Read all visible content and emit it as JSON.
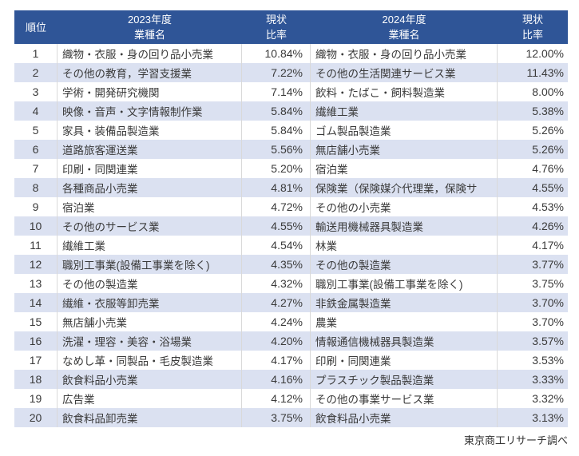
{
  "chart_data": {
    "type": "table",
    "columns": [
      "順位",
      "2023年度 業種名",
      "現状比率",
      "2024年度 業種名",
      "現状比率"
    ],
    "headers": {
      "rank": "順位",
      "year_2023": "2023年度",
      "year_2024": "2024年度",
      "industry_label": "業種名",
      "ratio_line1": "現状",
      "ratio_line2": "比率"
    },
    "rows": [
      {
        "rank": "1",
        "industry_2023": "織物・衣服・身の回り品小売業",
        "ratio_2023": "10.84%",
        "industry_2024": "織物・衣服・身の回り品小売業",
        "ratio_2024": "12.00%"
      },
      {
        "rank": "2",
        "industry_2023": "その他の教育，学習支援業",
        "ratio_2023": "7.22%",
        "industry_2024": "その他の生活関連サービス業",
        "ratio_2024": "11.43%"
      },
      {
        "rank": "3",
        "industry_2023": "学術・開発研究機関",
        "ratio_2023": "7.14%",
        "industry_2024": "飲料・たばこ・飼料製造業",
        "ratio_2024": "8.00%"
      },
      {
        "rank": "4",
        "industry_2023": "映像・音声・文字情報制作業",
        "ratio_2023": "5.84%",
        "industry_2024": "繊維工業",
        "ratio_2024": "5.38%"
      },
      {
        "rank": "5",
        "industry_2023": "家具・装備品製造業",
        "ratio_2023": "5.84%",
        "industry_2024": "ゴム製品製造業",
        "ratio_2024": "5.26%"
      },
      {
        "rank": "6",
        "industry_2023": "道路旅客運送業",
        "ratio_2023": "5.56%",
        "industry_2024": "無店舗小売業",
        "ratio_2024": "5.26%"
      },
      {
        "rank": "7",
        "industry_2023": "印刷・同関連業",
        "ratio_2023": "5.20%",
        "industry_2024": "宿泊業",
        "ratio_2024": "4.76%"
      },
      {
        "rank": "8",
        "industry_2023": "各種商品小売業",
        "ratio_2023": "4.81%",
        "industry_2024": "保険業（保険媒介代理業，保険サ",
        "ratio_2024": "4.55%"
      },
      {
        "rank": "9",
        "industry_2023": "宿泊業",
        "ratio_2023": "4.72%",
        "industry_2024": "その他の小売業",
        "ratio_2024": "4.53%"
      },
      {
        "rank": "10",
        "industry_2023": "その他のサービス業",
        "ratio_2023": "4.55%",
        "industry_2024": "輸送用機械器具製造業",
        "ratio_2024": "4.26%"
      },
      {
        "rank": "11",
        "industry_2023": "繊維工業",
        "ratio_2023": "4.54%",
        "industry_2024": "林業",
        "ratio_2024": "4.17%"
      },
      {
        "rank": "12",
        "industry_2023": "職別工事業(設備工事業を除く)",
        "ratio_2023": "4.35%",
        "industry_2024": "その他の製造業",
        "ratio_2024": "3.77%"
      },
      {
        "rank": "13",
        "industry_2023": "その他の製造業",
        "ratio_2023": "4.32%",
        "industry_2024": "職別工事業(設備工事業を除く)",
        "ratio_2024": "3.75%"
      },
      {
        "rank": "14",
        "industry_2023": "繊維・衣服等卸売業",
        "ratio_2023": "4.27%",
        "industry_2024": "非鉄金属製造業",
        "ratio_2024": "3.70%"
      },
      {
        "rank": "15",
        "industry_2023": "無店舗小売業",
        "ratio_2023": "4.24%",
        "industry_2024": "農業",
        "ratio_2024": "3.70%"
      },
      {
        "rank": "16",
        "industry_2023": "洗濯・理容・美容・浴場業",
        "ratio_2023": "4.20%",
        "industry_2024": "情報通信機械器具製造業",
        "ratio_2024": "3.57%"
      },
      {
        "rank": "17",
        "industry_2023": "なめし革・同製品・毛皮製造業",
        "ratio_2023": "4.17%",
        "industry_2024": "印刷・同関連業",
        "ratio_2024": "3.53%"
      },
      {
        "rank": "18",
        "industry_2023": "飲食料品小売業",
        "ratio_2023": "4.16%",
        "industry_2024": "プラスチック製品製造業",
        "ratio_2024": "3.33%"
      },
      {
        "rank": "19",
        "industry_2023": "広告業",
        "ratio_2023": "4.12%",
        "industry_2024": "その他の事業サービス業",
        "ratio_2024": "3.32%"
      },
      {
        "rank": "20",
        "industry_2023": "飲食料品卸売業",
        "ratio_2023": "3.75%",
        "industry_2024": "飲食料品小売業",
        "ratio_2024": "3.13%"
      }
    ],
    "source_note": "東京商工リサーチ調べ",
    "layout": {
      "legend_position": "none",
      "grid": "column-dividers-only",
      "alt_row_shading": "even-rows"
    }
  },
  "colors": {
    "header_bg": "#2F5597",
    "header_text": "#FFFFFF",
    "alt_row_bg": "#DBE1F1",
    "row_bg": "#FFFFFF",
    "divider": "#D9D9D9",
    "text": "#3A3A3A"
  }
}
